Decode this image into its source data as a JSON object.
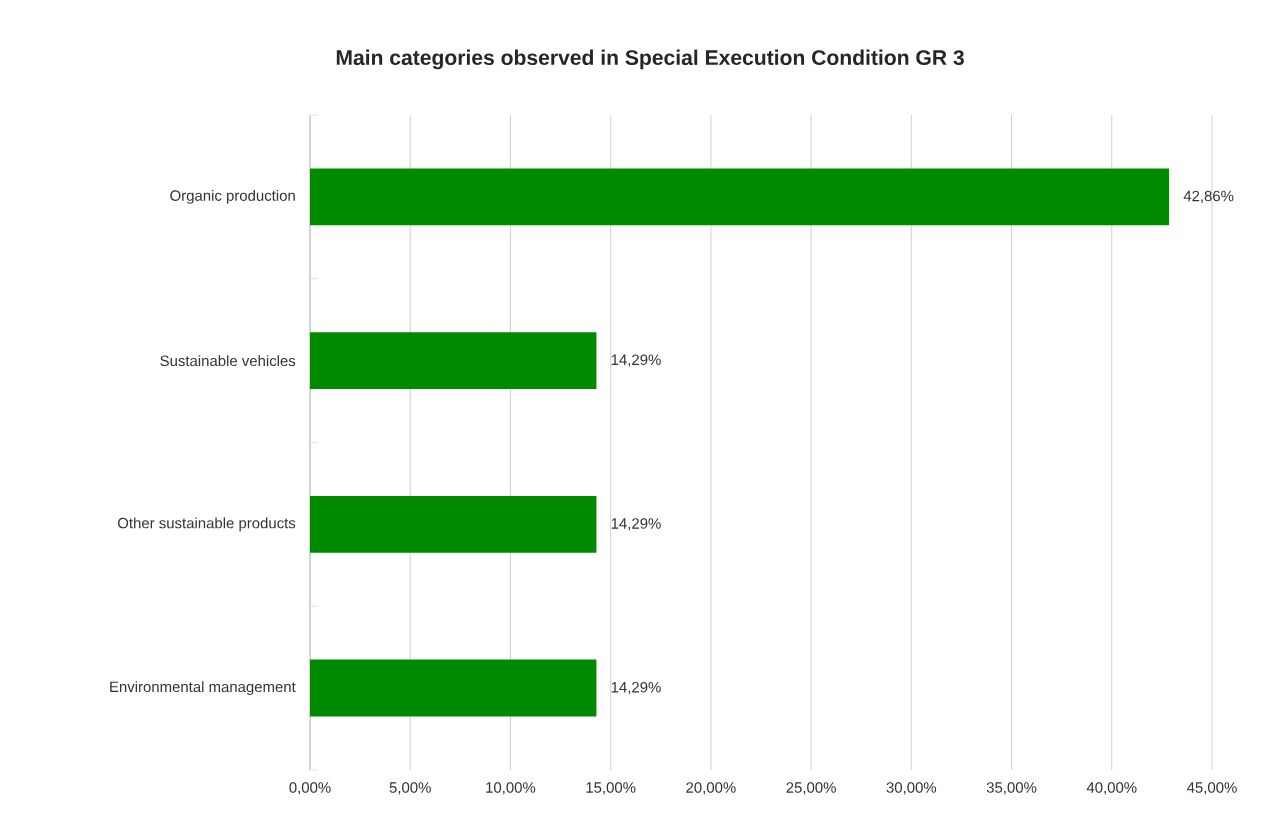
{
  "chart_data": {
    "type": "bar",
    "orientation": "horizontal",
    "title": "Main categories observed in Special Execution Condition GR 3",
    "categories": [
      "Organic production",
      "Sustainable vehicles",
      "Other sustainable products",
      "Environmental management"
    ],
    "values": [
      42.86,
      14.29,
      14.29,
      14.29
    ],
    "value_labels": [
      "42,86%",
      "14,29%",
      "14,29%",
      "14,29%"
    ],
    "color": "#008a00",
    "xlim": [
      0,
      45
    ],
    "xticks": [
      {
        "value": 0,
        "label": "0,00%"
      },
      {
        "value": 5,
        "label": "5,00%"
      },
      {
        "value": 10,
        "label": "10,00%"
      },
      {
        "value": 15,
        "label": "15,00%"
      },
      {
        "value": 20,
        "label": "20,00%"
      },
      {
        "value": 25,
        "label": "25,00%"
      },
      {
        "value": 30,
        "label": "30,00%"
      },
      {
        "value": 35,
        "label": "35,00%"
      },
      {
        "value": 40,
        "label": "40,00%"
      },
      {
        "value": 45,
        "label": "45,00%"
      }
    ],
    "grid": "x"
  }
}
